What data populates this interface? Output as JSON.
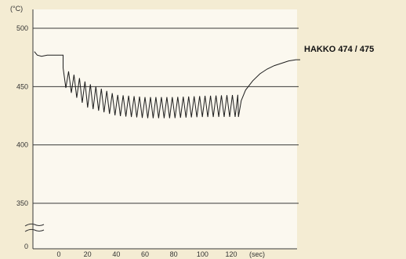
{
  "chart_data": {
    "type": "line",
    "title": "",
    "y_unit_label": "(°C)",
    "x_unit_label": "(sec)",
    "ylim": [
      350,
      500
    ],
    "y_ticks": [
      500,
      450,
      400,
      350
    ],
    "y_zero_label": "0",
    "x_ticks": [
      0,
      20,
      40,
      60,
      80,
      100,
      120
    ],
    "xlim": [
      -17,
      168
    ],
    "grid": "horizontal",
    "axis_break": "y, between 0 and 350",
    "series": [
      {
        "name": "HAKKO 474 / 475",
        "idle": [
          {
            "x": -17,
            "y": 480
          },
          {
            "x": -15,
            "y": 477
          },
          {
            "x": -12,
            "y": 476
          },
          {
            "x": -8,
            "y": 477
          },
          {
            "x": -4,
            "y": 477
          },
          {
            "x": 0,
            "y": 477
          },
          {
            "x": 3,
            "y": 477
          }
        ],
        "oscillation": {
          "start": 3,
          "end": 125,
          "step": 1.9,
          "envelope_x": [
            3,
            20,
            40,
            60,
            80,
            100,
            125
          ],
          "envelope_high": [
            466,
            453,
            443,
            441,
            441,
            442,
            443
          ],
          "envelope_low": [
            451,
            432,
            425,
            423,
            423,
            424,
            424
          ]
        },
        "recovery": [
          {
            "x": 125,
            "y": 424
          },
          {
            "x": 127,
            "y": 438
          },
          {
            "x": 130,
            "y": 447
          },
          {
            "x": 135,
            "y": 455
          },
          {
            "x": 140,
            "y": 461
          },
          {
            "x": 145,
            "y": 465
          },
          {
            "x": 150,
            "y": 468
          },
          {
            "x": 155,
            "y": 470
          },
          {
            "x": 160,
            "y": 472
          },
          {
            "x": 165,
            "y": 473
          },
          {
            "x": 168,
            "y": 473
          }
        ]
      }
    ]
  }
}
